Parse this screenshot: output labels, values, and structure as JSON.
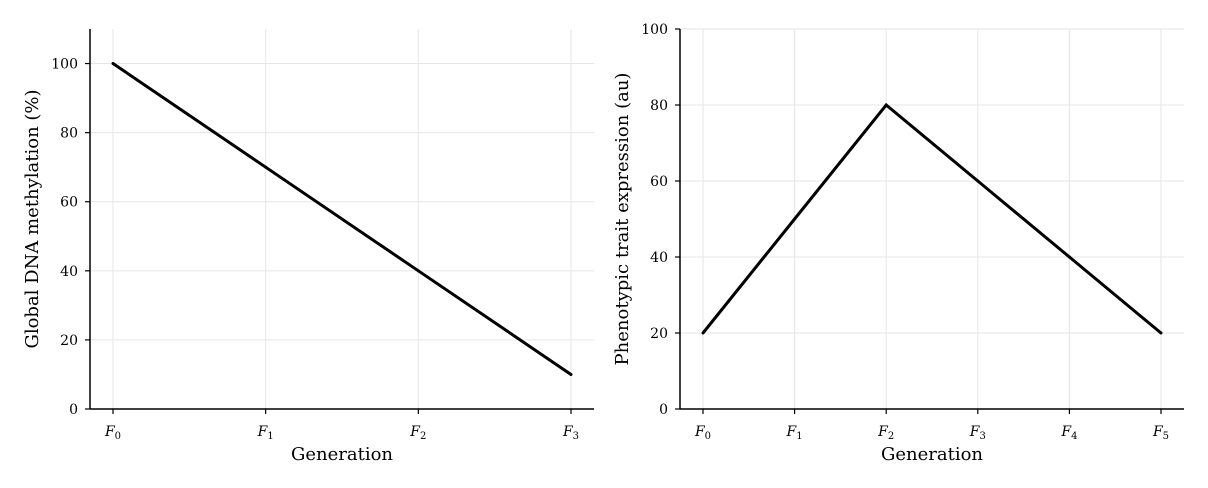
{
  "chart_data": [
    {
      "type": "line",
      "categories": [
        "F0",
        "F1",
        "F2",
        "F3"
      ],
      "category_labels": [
        {
          "base": "F",
          "sub": "0"
        },
        {
          "base": "F",
          "sub": "1"
        },
        {
          "base": "F",
          "sub": "2"
        },
        {
          "base": "F",
          "sub": "3"
        }
      ],
      "values": [
        100,
        70,
        40,
        10
      ],
      "xlabel": "Generation",
      "ylabel": "Global DNA methylation (%)",
      "ylim": [
        0,
        110
      ],
      "yticks": [
        0,
        20,
        40,
        60,
        80,
        100
      ],
      "grid": true,
      "line_color": "#000000"
    },
    {
      "type": "line",
      "categories": [
        "F0",
        "F1",
        "F2",
        "F3",
        "F4",
        "F5"
      ],
      "category_labels": [
        {
          "base": "F",
          "sub": "0"
        },
        {
          "base": "F",
          "sub": "1"
        },
        {
          "base": "F",
          "sub": "2"
        },
        {
          "base": "F",
          "sub": "3"
        },
        {
          "base": "F",
          "sub": "4"
        },
        {
          "base": "F",
          "sub": "5"
        }
      ],
      "values": [
        20,
        50,
        80,
        60,
        40,
        20
      ],
      "xlabel": "Generation",
      "ylabel": "Phenotypic trait expression (au)",
      "ylim": [
        0,
        100
      ],
      "yticks": [
        0,
        20,
        40,
        60,
        80,
        100
      ],
      "grid": true,
      "line_color": "#000000"
    }
  ]
}
